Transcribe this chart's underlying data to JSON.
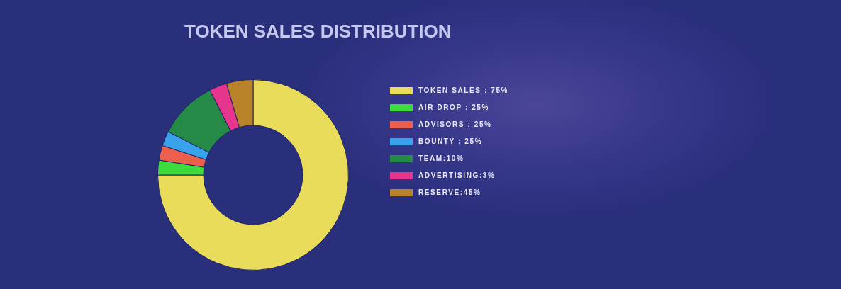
{
  "chart_data": {
    "type": "donut",
    "title": "TOKEN SALES DISTRIBUTION",
    "categories": [
      "TOKEN SALES : 75%",
      "AIR DROP : 25%",
      "ADVISORS : 25%",
      "BOUNTY : 25%",
      "TEAM:10%",
      "ADVERTISING:3%",
      "RESERVE:45%"
    ],
    "values": [
      75,
      2.5,
      2.5,
      2.5,
      10,
      3,
      4.5
    ],
    "colors": [
      "#e8dc5a",
      "#3ddb3b",
      "#ec5f4c",
      "#38a3ea",
      "#258a45",
      "#e6358c",
      "#b9832a"
    ],
    "legend": "right"
  }
}
